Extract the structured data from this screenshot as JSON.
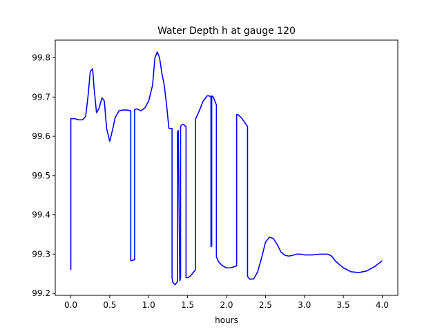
{
  "chart_data": {
    "type": "line",
    "title": "Water Depth h at gauge 120",
    "xlabel": "hours",
    "ylabel": "",
    "xlim": [
      -0.2,
      4.2
    ],
    "ylim": [
      99.195,
      99.845
    ],
    "xticks": [
      0.0,
      0.5,
      1.0,
      1.5,
      2.0,
      2.5,
      3.0,
      3.5,
      4.0
    ],
    "xtick_labels": [
      "0.0",
      "0.5",
      "1.0",
      "1.5",
      "2.0",
      "2.5",
      "3.0",
      "3.5",
      "4.0"
    ],
    "yticks": [
      99.2,
      99.3,
      99.4,
      99.5,
      99.6,
      99.7,
      99.8
    ],
    "ytick_labels": [
      "99.2",
      "99.3",
      "99.4",
      "99.5",
      "99.6",
      "99.7",
      "99.8"
    ],
    "grid": false,
    "line_color": "#0000ff",
    "series": [
      {
        "x": [
          0.0,
          0.0,
          0.05,
          0.1,
          0.15,
          0.19,
          0.22,
          0.25,
          0.28,
          0.3,
          0.33,
          0.36,
          0.4,
          0.43,
          0.46,
          0.5,
          0.54,
          0.57,
          0.62,
          0.67,
          0.72,
          0.77,
          0.77,
          0.82,
          0.82,
          0.85,
          0.9,
          0.95,
          1.0,
          1.05,
          1.08,
          1.11,
          1.14,
          1.17,
          1.2,
          1.23,
          1.26,
          1.3,
          1.3,
          1.31,
          1.34,
          1.37,
          1.37,
          1.38,
          1.4,
          1.41,
          1.41,
          1.43,
          1.45,
          1.48,
          1.48,
          1.5,
          1.53,
          1.56,
          1.6,
          1.6,
          1.65,
          1.7,
          1.75,
          1.78,
          1.8,
          1.8,
          1.81,
          1.81,
          1.83,
          1.87,
          1.87,
          1.9,
          1.95,
          2.0,
          2.05,
          2.1,
          2.13,
          2.13,
          2.15,
          2.2,
          2.27,
          2.27,
          2.3,
          2.35,
          2.4,
          2.45,
          2.5,
          2.55,
          2.6,
          2.65,
          2.7,
          2.75,
          2.8,
          2.85,
          2.9,
          2.95,
          3.0,
          3.1,
          3.2,
          3.3,
          3.35,
          3.4,
          3.5,
          3.6,
          3.7,
          3.8,
          3.9,
          4.0
        ],
        "y": [
          99.26,
          99.645,
          99.645,
          99.642,
          99.642,
          99.65,
          99.7,
          99.765,
          99.772,
          99.72,
          99.66,
          99.67,
          99.698,
          99.69,
          99.62,
          99.587,
          99.62,
          99.648,
          99.665,
          99.667,
          99.667,
          99.665,
          99.283,
          99.286,
          99.668,
          99.67,
          99.665,
          99.672,
          99.69,
          99.73,
          99.8,
          99.815,
          99.8,
          99.76,
          99.73,
          99.68,
          99.62,
          99.62,
          99.24,
          99.228,
          99.222,
          99.23,
          99.61,
          99.615,
          99.232,
          99.24,
          99.625,
          99.63,
          99.63,
          99.624,
          99.24,
          99.24,
          99.243,
          99.25,
          99.26,
          99.643,
          99.665,
          99.69,
          99.703,
          99.703,
          99.7,
          99.32,
          99.32,
          99.703,
          99.7,
          99.68,
          99.293,
          99.28,
          99.27,
          99.265,
          99.265,
          99.268,
          99.27,
          99.655,
          99.655,
          99.645,
          99.625,
          99.243,
          99.236,
          99.237,
          99.255,
          99.29,
          99.33,
          99.343,
          99.34,
          99.325,
          99.305,
          99.297,
          99.295,
          99.297,
          99.3,
          99.3,
          99.298,
          99.298,
          99.3,
          99.3,
          99.295,
          99.282,
          99.265,
          99.255,
          99.253,
          99.257,
          99.268,
          99.283
        ]
      }
    ]
  }
}
